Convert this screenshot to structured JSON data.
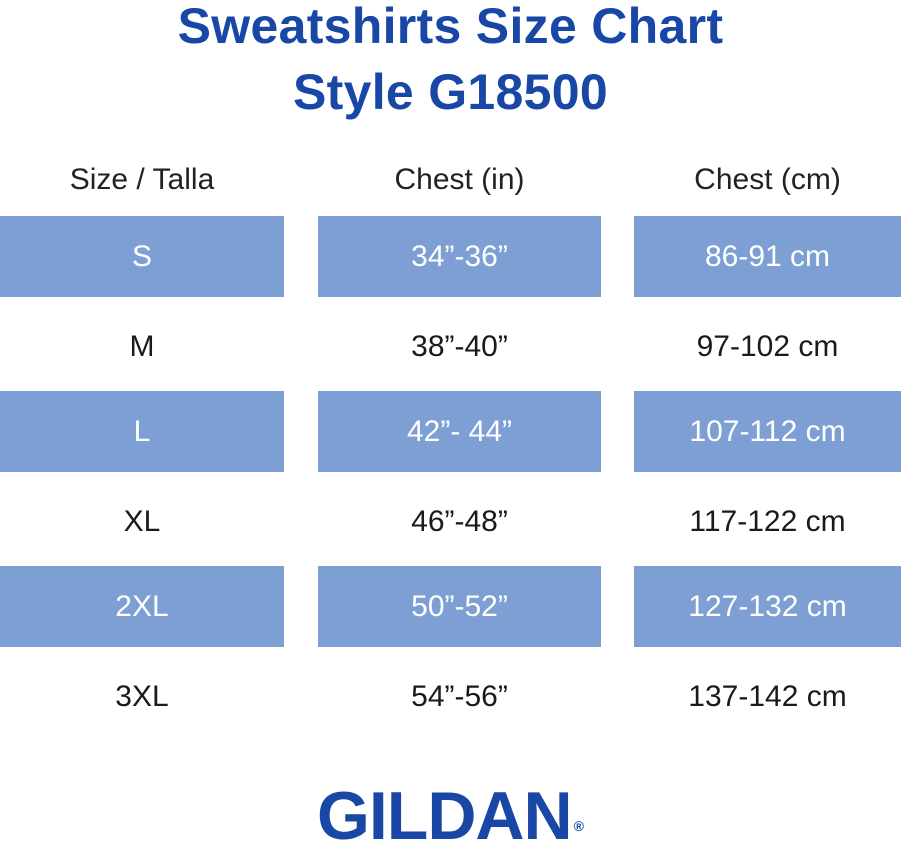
{
  "title": {
    "line1": "Sweatshirts Size Chart",
    "line2": "Style G18500"
  },
  "table": {
    "headers": [
      "Size / Talla",
      "Chest (in)",
      "Chest (cm)"
    ],
    "rows": [
      {
        "size": "S",
        "chest_in": "34”-36”",
        "chest_cm": "86-91 cm"
      },
      {
        "size": "M",
        "chest_in": "38”-40”",
        "chest_cm": "97-102 cm"
      },
      {
        "size": "L",
        "chest_in": "42”- 44”",
        "chest_cm": "107-112 cm"
      },
      {
        "size": "XL",
        "chest_in": "46”-48”",
        "chest_cm": "117-122 cm"
      },
      {
        "size": "2XL",
        "chest_in": "50”-52”",
        "chest_cm": "127-132 cm"
      },
      {
        "size": "3XL",
        "chest_in": "54”-56”",
        "chest_cm": "137-142 cm"
      }
    ]
  },
  "logo": {
    "text": "GILDAN",
    "mark": "®"
  },
  "colors": {
    "brand_blue": "#1847a6",
    "row_shade": "#7d9fd4",
    "shaded_text": "#ffffff",
    "text": "#1a1a1a"
  }
}
